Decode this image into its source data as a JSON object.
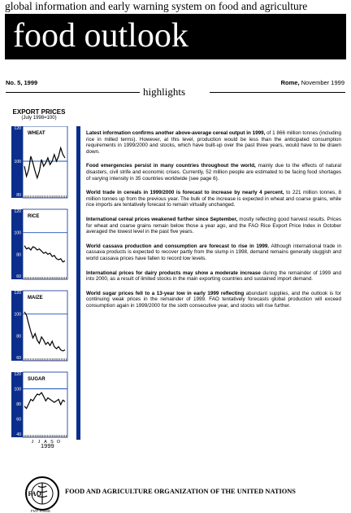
{
  "header": {
    "tagline": "global information and early warning system on food and agriculture",
    "title": "food outlook"
  },
  "issue": "No. 5, 1999",
  "place": "Rome,",
  "date": " November 1999",
  "section": "highlights",
  "export_prices": {
    "title": "EXPORT PRICES",
    "subtitle": "(July 1998=100)"
  },
  "chart_data": [
    {
      "type": "line",
      "title": "WHEAT",
      "ylim": [
        80,
        120
      ],
      "ticks": [
        "120",
        "100",
        "80"
      ],
      "reference": 100,
      "values": [
        97,
        91,
        95,
        103,
        99,
        94,
        90,
        94,
        101,
        97,
        99,
        102,
        98,
        100,
        104,
        100,
        103,
        108,
        104,
        102
      ]
    },
    {
      "type": "line",
      "title": "RICE",
      "ylim": [
        60,
        120
      ],
      "ticks": [
        "120",
        "100",
        "80",
        "60"
      ],
      "reference": 100,
      "values": [
        88,
        85,
        86,
        84,
        87,
        86,
        84,
        85,
        83,
        81,
        82,
        80,
        81,
        78,
        79,
        76,
        75,
        76,
        73,
        74
      ]
    },
    {
      "type": "line",
      "title": "MAIZE",
      "ylim": [
        60,
        120
      ],
      "ticks": [
        "120",
        "100",
        "80",
        "60"
      ],
      "reference": 100,
      "values": [
        102,
        99,
        91,
        84,
        78,
        82,
        76,
        73,
        79,
        76,
        72,
        74,
        71,
        75,
        70,
        68,
        70,
        67,
        66,
        67
      ]
    },
    {
      "type": "line",
      "title": "SUGAR",
      "ylim": [
        40,
        120
      ],
      "ticks": [
        "120",
        "100",
        "80",
        "60",
        "40"
      ],
      "reference": 100,
      "values": [
        77,
        74,
        80,
        86,
        84,
        89,
        93,
        92,
        95,
        90,
        84,
        88,
        86,
        84,
        82,
        84,
        86,
        79,
        85,
        83
      ]
    }
  ],
  "months": [
    "J",
    "J",
    "A",
    "S",
    "O"
  ],
  "year": "1999",
  "paragraphs": [
    {
      "bold": "Latest information confirms another above-average cereal output in 1999,",
      "rest": " of 1 866 million tonnes (including rice in milled terms). However, at this level, production would be less than the anticipated consumption requirements in 1999/2000 and stocks, which have built-up over the past three years, would have to be drawn down."
    },
    {
      "bold": "Food emergencies persist in many countries throughout the world,",
      "rest": " mainly due to the effects of natural disasters, civil strife and economic crises. Currently, 52 million people are estimated to be facing food shortages of varying intensity in 35 countries worldwide (see page 6)."
    },
    {
      "bold": "World trade in cereals in 1999/2000 is forecast to increase by nearly 4 percent,",
      "rest": " to 221 million tonnes, 8 million tonnes up from the previous year. The bulk of the increase is expected in wheat and coarse grains, while rice imports are tentatively forecast to remain virtually unchanged."
    },
    {
      "bold": "International cereal prices weakened further since September,",
      "rest": " mostly reflecting good harvest results. Prices for wheat and coarse grains remain below those a year ago, and the FAO Rice Export Price Index in October averaged the lowest level in the past five years."
    },
    {
      "bold": "World cassava production and consumption are forecast to rise in 1999.",
      "rest": " Although international trade in cassava products is expected to recover partly from the slump in 1998, demand remains generally sluggish and world cassava prices have fallen to record low levels."
    },
    {
      "bold": "International prices for dairy products may show a moderate increase",
      "rest": " during the remainder of 1999 and into 2000, as a result of limited stocks in the main exporting countries and sustained import demand."
    },
    {
      "bold": "World sugar prices fell to a 13-year low in early 1999 reflecting",
      "rest": " abundant supplies, and the outlook is for continuing weak prices in the remainder of 1999. FAO tentatively forecasts global production will exceed consumption again in 1999/2000 for the sixth consecutive year, and stocks will rise further."
    }
  ],
  "footer": {
    "logo_text": "FAO",
    "logo_motto": "FIAT PANIS",
    "org_name": "FOOD AND AGRICULTURE ORGANIZATION OF THE UNITED NATIONS"
  }
}
